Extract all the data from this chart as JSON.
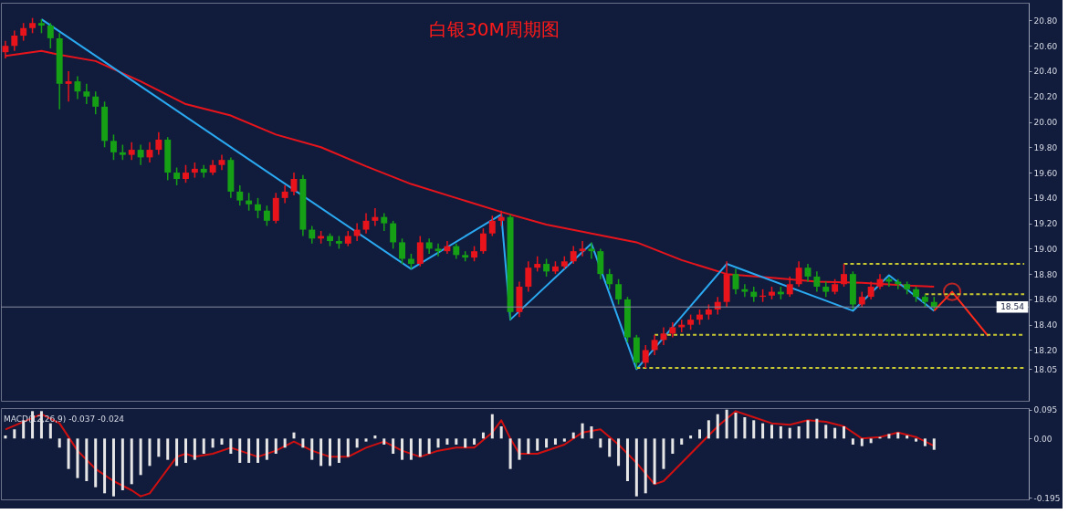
{
  "chart_data": [
    {
      "type": "candlestick",
      "title": "白银30M周期图",
      "categories": [
        null,
        null,
        null,
        null,
        null,
        null,
        null,
        null,
        null,
        null,
        null,
        null,
        null,
        null,
        null,
        null,
        null,
        null,
        null,
        null,
        null,
        null,
        null,
        null,
        null,
        null,
        null,
        null,
        null,
        null,
        null,
        null,
        null,
        null,
        null,
        null,
        null,
        null,
        null,
        null,
        null,
        null,
        null,
        null,
        null,
        null,
        null,
        null,
        null,
        null,
        null,
        null,
        null,
        null,
        null,
        null,
        null,
        null,
        null,
        null,
        null,
        null,
        null,
        null,
        null,
        null,
        null,
        null,
        null,
        null,
        null,
        null,
        null,
        null,
        null,
        null,
        null,
        null,
        null,
        null,
        null,
        null,
        null,
        null,
        null,
        null,
        null,
        null,
        null,
        null,
        null,
        null,
        null,
        null,
        null,
        null,
        null,
        null,
        null,
        null,
        null,
        null,
        null,
        null,
        null,
        null,
        null,
        null,
        null,
        null,
        null,
        null,
        null,
        null
      ],
      "ohlc": [
        [
          20.55,
          20.64,
          20.5,
          20.6
        ],
        [
          20.6,
          20.72,
          20.56,
          20.68
        ],
        [
          20.68,
          20.78,
          20.64,
          20.74
        ],
        [
          20.74,
          20.82,
          20.7,
          20.78
        ],
        [
          20.78,
          20.81,
          20.7,
          20.76
        ],
        [
          20.76,
          20.78,
          20.58,
          20.66
        ],
        [
          20.66,
          20.7,
          20.1,
          20.3
        ],
        [
          20.3,
          20.4,
          20.16,
          20.32
        ],
        [
          20.32,
          20.36,
          20.18,
          20.24
        ],
        [
          20.24,
          20.3,
          20.14,
          20.2
        ],
        [
          20.2,
          20.24,
          20.06,
          20.12
        ],
        [
          20.12,
          20.16,
          19.8,
          19.85
        ],
        [
          19.85,
          19.9,
          19.7,
          19.76
        ],
        [
          19.76,
          19.82,
          19.7,
          19.74
        ],
        [
          19.74,
          19.84,
          19.7,
          19.78
        ],
        [
          19.78,
          19.82,
          19.66,
          19.72
        ],
        [
          19.72,
          19.84,
          19.68,
          19.78
        ],
        [
          19.78,
          19.92,
          19.74,
          19.86
        ],
        [
          19.86,
          19.88,
          19.54,
          19.6
        ],
        [
          19.6,
          19.64,
          19.5,
          19.55
        ],
        [
          19.55,
          19.66,
          19.52,
          19.6
        ],
        [
          19.6,
          19.68,
          19.56,
          19.63
        ],
        [
          19.63,
          19.66,
          19.56,
          19.6
        ],
        [
          19.6,
          19.7,
          19.58,
          19.66
        ],
        [
          19.66,
          19.74,
          19.62,
          19.7
        ],
        [
          19.7,
          19.72,
          19.4,
          19.45
        ],
        [
          19.45,
          19.5,
          19.34,
          19.38
        ],
        [
          19.38,
          19.44,
          19.3,
          19.35
        ],
        [
          19.35,
          19.4,
          19.24,
          19.3
        ],
        [
          19.3,
          19.34,
          19.18,
          19.22
        ],
        [
          19.22,
          19.44,
          19.2,
          19.4
        ],
        [
          19.4,
          19.5,
          19.36,
          19.45
        ],
        [
          19.45,
          19.6,
          19.42,
          19.55
        ],
        [
          19.55,
          19.58,
          19.1,
          19.15
        ],
        [
          19.15,
          19.18,
          19.04,
          19.08
        ],
        [
          19.08,
          19.14,
          19.04,
          19.1
        ],
        [
          19.1,
          19.12,
          19.02,
          19.06
        ],
        [
          19.06,
          19.1,
          19.0,
          19.04
        ],
        [
          19.04,
          19.14,
          19.02,
          19.1
        ],
        [
          19.1,
          19.2,
          19.06,
          19.15
        ],
        [
          19.15,
          19.28,
          19.12,
          19.22
        ],
        [
          19.22,
          19.32,
          19.18,
          19.25
        ],
        [
          19.25,
          19.28,
          19.14,
          19.2
        ],
        [
          19.2,
          19.22,
          19.0,
          19.05
        ],
        [
          19.05,
          19.08,
          18.88,
          18.92
        ],
        [
          18.92,
          18.96,
          18.84,
          18.88
        ],
        [
          18.88,
          19.1,
          18.86,
          19.05
        ],
        [
          19.05,
          19.08,
          18.96,
          19.0
        ],
        [
          19.0,
          19.04,
          18.94,
          18.98
        ],
        [
          18.98,
          19.06,
          18.96,
          19.02
        ],
        [
          19.02,
          19.04,
          18.92,
          18.95
        ],
        [
          18.95,
          18.98,
          18.9,
          18.93
        ],
        [
          18.93,
          19.02,
          18.9,
          18.98
        ],
        [
          18.98,
          19.16,
          18.96,
          19.12
        ],
        [
          19.12,
          19.26,
          19.1,
          19.22
        ],
        [
          19.22,
          19.3,
          19.18,
          19.25
        ],
        [
          19.25,
          19.27,
          18.44,
          18.5
        ],
        [
          18.5,
          18.74,
          18.46,
          18.7
        ],
        [
          18.7,
          18.9,
          18.66,
          18.85
        ],
        [
          18.85,
          18.94,
          18.82,
          18.88
        ],
        [
          18.88,
          18.92,
          18.78,
          18.82
        ],
        [
          18.82,
          18.9,
          18.8,
          18.86
        ],
        [
          18.86,
          18.94,
          18.84,
          18.9
        ],
        [
          18.9,
          19.02,
          18.88,
          18.98
        ],
        [
          18.98,
          19.06,
          18.94,
          19.0
        ],
        [
          19.0,
          19.05,
          18.92,
          18.98
        ],
        [
          18.98,
          19.0,
          18.76,
          18.8
        ],
        [
          18.8,
          18.84,
          18.68,
          18.72
        ],
        [
          18.72,
          18.76,
          18.56,
          18.6
        ],
        [
          18.6,
          18.62,
          18.26,
          18.3
        ],
        [
          18.3,
          18.32,
          18.05,
          18.1
        ],
        [
          18.1,
          18.24,
          18.06,
          18.2
        ],
        [
          18.2,
          18.32,
          18.16,
          18.28
        ],
        [
          18.28,
          18.38,
          18.24,
          18.33
        ],
        [
          18.33,
          18.42,
          18.3,
          18.38
        ],
        [
          18.38,
          18.44,
          18.34,
          18.4
        ],
        [
          18.4,
          18.48,
          18.36,
          18.44
        ],
        [
          18.44,
          18.52,
          18.4,
          18.48
        ],
        [
          18.48,
          18.56,
          18.44,
          18.52
        ],
        [
          18.52,
          18.62,
          18.48,
          18.58
        ],
        [
          18.58,
          18.9,
          18.54,
          18.8
        ],
        [
          18.8,
          18.84,
          18.64,
          18.68
        ],
        [
          18.68,
          18.72,
          18.62,
          18.66
        ],
        [
          18.66,
          18.7,
          18.58,
          18.62
        ],
        [
          18.62,
          18.68,
          18.58,
          18.63
        ],
        [
          18.63,
          18.7,
          18.6,
          18.66
        ],
        [
          18.66,
          18.7,
          18.6,
          18.64
        ],
        [
          18.64,
          18.78,
          18.62,
          18.72
        ],
        [
          18.72,
          18.9,
          18.7,
          18.85
        ],
        [
          18.85,
          18.88,
          18.74,
          18.78
        ],
        [
          18.78,
          18.82,
          18.66,
          18.7
        ],
        [
          18.7,
          18.74,
          18.62,
          18.66
        ],
        [
          18.66,
          18.76,
          18.64,
          18.72
        ],
        [
          18.72,
          18.88,
          18.7,
          18.8
        ],
        [
          18.8,
          18.82,
          18.52,
          18.56
        ],
        [
          18.56,
          18.66,
          18.54,
          18.62
        ],
        [
          18.62,
          18.74,
          18.6,
          18.7
        ],
        [
          18.7,
          18.8,
          18.68,
          18.76
        ],
        [
          18.76,
          18.78,
          18.7,
          18.74
        ],
        [
          18.74,
          18.76,
          18.68,
          18.72
        ],
        [
          18.72,
          18.74,
          18.64,
          18.68
        ],
        [
          18.68,
          18.7,
          18.58,
          18.62
        ],
        [
          18.62,
          18.64,
          18.54,
          18.58
        ],
        [
          18.58,
          18.62,
          18.52,
          18.54
        ],
        null,
        null,
        null,
        null,
        null,
        null,
        null,
        null,
        null,
        null
      ],
      "colors": [
        "#e8141c",
        "#e8141c",
        "#e8141c",
        "#e8141c",
        "#16a016",
        "#16a016",
        "#16a016",
        "#e8141c",
        "#16a016",
        "#16a016",
        "#16a016",
        "#16a016",
        "#16a016",
        "#16a016",
        "#e8141c",
        "#16a016",
        "#e8141c",
        "#e8141c",
        "#16a016",
        "#16a016",
        "#e8141c",
        "#e8141c",
        "#16a016",
        "#e8141c",
        "#e8141c",
        "#16a016",
        "#16a016",
        "#16a016",
        "#16a016",
        "#16a016",
        "#e8141c",
        "#e8141c",
        "#e8141c",
        "#16a016",
        "#16a016",
        "#e8141c",
        "#16a016",
        "#16a016",
        "#e8141c",
        "#e8141c",
        "#e8141c",
        "#e8141c",
        "#16a016",
        "#16a016",
        "#16a016",
        "#16a016",
        "#e8141c",
        "#16a016",
        "#16a016",
        "#e8141c",
        "#16a016",
        "#16a016",
        "#e8141c",
        "#e8141c",
        "#e8141c",
        "#e8141c",
        "#16a016",
        "#e8141c",
        "#e8141c",
        "#e8141c",
        "#16a016",
        "#e8141c",
        "#e8141c",
        "#e8141c",
        "#e8141c",
        "#16a016",
        "#16a016",
        "#16a016",
        "#16a016",
        "#16a016",
        "#16a016",
        "#e8141c",
        "#e8141c",
        "#e8141c",
        "#e8141c",
        "#e8141c",
        "#e8141c",
        "#e8141c",
        "#e8141c",
        "#e8141c",
        "#e8141c",
        "#16a016",
        "#16a016",
        "#16a016",
        "#e8141c",
        "#e8141c",
        "#16a016",
        "#e8141c",
        "#e8141c",
        "#16a016",
        "#16a016",
        "#16a016",
        "#e8141c",
        "#e8141c",
        "#16a016",
        "#e8141c",
        "#e8141c",
        "#e8141c",
        "#16a016",
        "#16a016",
        "#16a016",
        "#16a016",
        "#16a016",
        "#16a016",
        null,
        null,
        null,
        null,
        null,
        null,
        null,
        null,
        null,
        null
      ],
      "series": [
        {
          "type": "line",
          "color": "#e8141c",
          "line_style": "solid",
          "values": [
            20.52,
            null,
            null,
            null,
            20.56,
            null,
            20.53,
            null,
            null,
            null,
            20.48,
            null,
            null,
            null,
            null,
            20.32,
            null,
            null,
            null,
            null,
            20.14,
            null,
            null,
            null,
            null,
            20.05,
            null,
            null,
            null,
            null,
            19.9,
            null,
            null,
            null,
            null,
            19.8,
            null,
            null,
            null,
            null,
            19.65,
            null,
            null,
            null,
            null,
            19.51,
            null,
            null,
            null,
            null,
            19.4,
            null,
            null,
            null,
            null,
            19.29,
            null,
            null,
            null,
            null,
            19.19,
            null,
            null,
            null,
            null,
            19.12,
            null,
            null,
            null,
            null,
            19.05,
            null,
            null,
            null,
            null,
            18.91,
            null,
            null,
            null,
            null,
            18.8,
            null,
            null,
            null,
            null,
            18.77,
            null,
            null,
            null,
            null,
            18.74,
            null,
            null,
            null,
            null,
            18.73,
            null,
            null,
            null,
            null,
            18.71,
            null,
            null,
            18.7,
            null,
            null,
            null,
            null,
            null,
            null,
            null,
            null,
            null,
            null
          ]
        },
        {
          "type": "line",
          "color": "#2aa8f0",
          "line_style": "solid",
          "values": [
            null,
            null,
            null,
            null,
            20.81,
            null,
            null,
            null,
            null,
            null,
            null,
            null,
            null,
            null,
            null,
            null,
            null,
            null,
            null,
            null,
            null,
            null,
            null,
            null,
            null,
            null,
            null,
            null,
            null,
            null,
            null,
            null,
            null,
            null,
            null,
            null,
            null,
            null,
            null,
            null,
            null,
            null,
            null,
            null,
            null,
            18.84,
            null,
            null,
            null,
            null,
            null,
            null,
            null,
            null,
            null,
            19.27,
            18.44,
            null,
            null,
            null,
            null,
            null,
            null,
            null,
            null,
            19.04,
            null,
            null,
            null,
            null,
            18.05,
            null,
            null,
            null,
            null,
            null,
            null,
            null,
            null,
            null,
            18.88,
            null,
            null,
            null,
            null,
            null,
            null,
            null,
            null,
            null,
            null,
            null,
            null,
            null,
            18.51,
            null,
            null,
            null,
            18.79,
            null,
            null,
            null,
            null,
            18.51,
            null,
            null,
            null,
            null,
            null,
            null,
            null,
            null,
            null,
            null
          ]
        },
        {
          "type": "line",
          "color": "#ff2a1a",
          "line_style": "solid",
          "values": [
            null,
            null,
            null,
            null,
            null,
            null,
            null,
            null,
            null,
            null,
            null,
            null,
            null,
            null,
            null,
            null,
            null,
            null,
            null,
            null,
            null,
            null,
            null,
            null,
            null,
            null,
            null,
            null,
            null,
            null,
            null,
            null,
            null,
            null,
            null,
            null,
            null,
            null,
            null,
            null,
            null,
            null,
            null,
            null,
            null,
            null,
            null,
            null,
            null,
            null,
            null,
            null,
            null,
            null,
            null,
            null,
            null,
            null,
            null,
            null,
            null,
            null,
            null,
            null,
            null,
            null,
            null,
            null,
            null,
            null,
            null,
            null,
            null,
            null,
            null,
            null,
            null,
            null,
            null,
            null,
            null,
            null,
            null,
            null,
            null,
            null,
            null,
            null,
            null,
            null,
            null,
            null,
            null,
            null,
            null,
            null,
            null,
            null,
            null,
            null,
            null,
            null,
            null,
            18.51,
            null,
            18.66,
            null,
            null,
            null,
            18.31,
            null,
            null,
            null,
            null
          ]
        },
        {
          "type": "scatter",
          "color": "#ff2a1a",
          "marker": "circle",
          "values": [
            null,
            null,
            null,
            null,
            null,
            null,
            null,
            null,
            null,
            null,
            null,
            null,
            null,
            null,
            null,
            null,
            null,
            null,
            null,
            null,
            null,
            null,
            null,
            null,
            null,
            null,
            null,
            null,
            null,
            null,
            null,
            null,
            null,
            null,
            null,
            null,
            null,
            null,
            null,
            null,
            null,
            null,
            null,
            null,
            null,
            null,
            null,
            null,
            null,
            null,
            null,
            null,
            null,
            null,
            null,
            null,
            null,
            null,
            null,
            null,
            null,
            null,
            null,
            null,
            null,
            null,
            null,
            null,
            null,
            null,
            null,
            null,
            null,
            null,
            null,
            null,
            null,
            null,
            null,
            null,
            null,
            null,
            null,
            null,
            null,
            null,
            null,
            null,
            null,
            null,
            null,
            null,
            null,
            null,
            null,
            null,
            null,
            null,
            null,
            null,
            null,
            null,
            null,
            null,
            null,
            18.66,
            null,
            null,
            null,
            null,
            null,
            null,
            null,
            null
          ]
        },
        {
          "type": "line",
          "color": "#c8c832",
          "line_style": "dashed",
          "values": [
            null,
            null,
            null,
            null,
            null,
            null,
            null,
            null,
            null,
            null,
            null,
            null,
            null,
            null,
            null,
            null,
            null,
            null,
            null,
            null,
            null,
            null,
            null,
            null,
            null,
            null,
            null,
            null,
            null,
            null,
            null,
            null,
            null,
            null,
            null,
            null,
            null,
            null,
            null,
            null,
            null,
            null,
            null,
            null,
            null,
            null,
            null,
            null,
            null,
            null,
            null,
            null,
            null,
            null,
            null,
            null,
            null,
            null,
            null,
            null,
            null,
            null,
            null,
            null,
            null,
            null,
            null,
            null,
            null,
            null,
            null,
            null,
            null,
            null,
            null,
            null,
            null,
            null,
            null,
            null,
            null,
            null,
            null,
            null,
            null,
            null,
            null,
            null,
            null,
            null,
            null,
            null,
            null,
            18.88,
            null,
            null,
            null,
            null,
            null,
            null,
            null,
            null,
            null,
            null,
            null,
            null,
            null,
            null,
            null,
            null,
            null,
            null,
            null,
            18.88
          ]
        },
        {
          "type": "line",
          "color": "#c8c832",
          "line_style": "dashed",
          "values": [
            null,
            null,
            null,
            null,
            null,
            null,
            null,
            null,
            null,
            null,
            null,
            null,
            null,
            null,
            null,
            null,
            null,
            null,
            null,
            null,
            null,
            null,
            null,
            null,
            null,
            null,
            null,
            null,
            null,
            null,
            null,
            null,
            null,
            null,
            null,
            null,
            null,
            null,
            null,
            null,
            null,
            null,
            null,
            null,
            null,
            null,
            null,
            null,
            null,
            null,
            null,
            null,
            null,
            null,
            null,
            null,
            null,
            null,
            null,
            null,
            null,
            null,
            null,
            null,
            null,
            null,
            null,
            null,
            null,
            null,
            null,
            null,
            null,
            null,
            null,
            null,
            null,
            null,
            null,
            null,
            null,
            null,
            null,
            null,
            null,
            null,
            null,
            null,
            null,
            null,
            null,
            null,
            null,
            null,
            null,
            null,
            null,
            null,
            null,
            null,
            null,
            null,
            18.64,
            null,
            null,
            null,
            null,
            null,
            null,
            null,
            null,
            null,
            null,
            18.64
          ]
        },
        {
          "type": "line",
          "color": "#c8c832",
          "line_style": "dashed",
          "values": [
            null,
            null,
            null,
            null,
            null,
            null,
            null,
            null,
            null,
            null,
            null,
            null,
            null,
            null,
            null,
            null,
            null,
            null,
            null,
            null,
            null,
            null,
            null,
            null,
            null,
            null,
            null,
            null,
            null,
            null,
            null,
            null,
            null,
            null,
            null,
            null,
            null,
            null,
            null,
            null,
            null,
            null,
            null,
            null,
            null,
            null,
            null,
            null,
            null,
            null,
            null,
            null,
            null,
            null,
            null,
            null,
            null,
            null,
            null,
            null,
            null,
            null,
            null,
            null,
            null,
            null,
            null,
            null,
            null,
            null,
            null,
            null,
            18.32,
            null,
            null,
            null,
            null,
            null,
            null,
            null,
            null,
            null,
            null,
            null,
            null,
            null,
            null,
            null,
            null,
            null,
            null,
            null,
            null,
            null,
            null,
            null,
            null,
            null,
            null,
            null,
            null,
            null,
            null,
            null,
            null,
            null,
            null,
            null,
            null,
            null,
            null,
            null,
            null,
            18.32
          ]
        },
        {
          "type": "line",
          "color": "#c8c832",
          "line_style": "dashed",
          "values": [
            null,
            null,
            null,
            null,
            null,
            null,
            null,
            null,
            null,
            null,
            null,
            null,
            null,
            null,
            null,
            null,
            null,
            null,
            null,
            null,
            null,
            null,
            null,
            null,
            null,
            null,
            null,
            null,
            null,
            null,
            null,
            null,
            null,
            null,
            null,
            null,
            null,
            null,
            null,
            null,
            null,
            null,
            null,
            null,
            null,
            null,
            null,
            null,
            null,
            null,
            null,
            null,
            null,
            null,
            null,
            null,
            null,
            null,
            null,
            null,
            null,
            null,
            null,
            null,
            null,
            null,
            null,
            null,
            null,
            null,
            18.06,
            null,
            null,
            null,
            null,
            null,
            null,
            null,
            null,
            null,
            null,
            null,
            null,
            null,
            null,
            null,
            null,
            null,
            null,
            null,
            null,
            null,
            null,
            null,
            null,
            null,
            null,
            null,
            null,
            null,
            null,
            null,
            null,
            null,
            null,
            null,
            null,
            null,
            null,
            null,
            null,
            null,
            null,
            18.06
          ]
        }
      ],
      "ref_lines": [
        {
          "axis": "y",
          "value": 18.54,
          "label": "18.54",
          "color": "#8a8fa0"
        }
      ],
      "ylim": [
        17.8,
        20.94
      ],
      "yticks": [
        {
          "value": 20.8,
          "label": "20.80"
        },
        {
          "value": 20.6,
          "label": "20.60"
        },
        {
          "value": 20.4,
          "label": "20.40"
        },
        {
          "value": 20.2,
          "label": "20.20"
        },
        {
          "value": 20.0,
          "label": "20.00"
        },
        {
          "value": 19.8,
          "label": "19.80"
        },
        {
          "value": 19.6,
          "label": "19.60"
        },
        {
          "value": 19.4,
          "label": "19.40"
        },
        {
          "value": 19.2,
          "label": "19.20"
        },
        {
          "value": 19.0,
          "label": "19.00"
        },
        {
          "value": 18.8,
          "label": "18.80"
        },
        {
          "value": 18.6,
          "label": "18.60"
        },
        {
          "value": 18.4,
          "label": "18.40"
        },
        {
          "value": 18.2,
          "label": "18.20"
        },
        18.05
      ],
      "tick_labels": "y",
      "grid": false
    },
    {
      "type": "bar",
      "categories": [
        null,
        null,
        null,
        null,
        null,
        null,
        null,
        null,
        null,
        null,
        null,
        null,
        null,
        null,
        null,
        null,
        null,
        null,
        null,
        null,
        null,
        null,
        null,
        null,
        null,
        null,
        null,
        null,
        null,
        null,
        null,
        null,
        null,
        null,
        null,
        null,
        null,
        null,
        null,
        null,
        null,
        null,
        null,
        null,
        null,
        null,
        null,
        null,
        null,
        null,
        null,
        null,
        null,
        null,
        null,
        null,
        null,
        null,
        null,
        null,
        null,
        null,
        null,
        null,
        null,
        null,
        null,
        null,
        null,
        null,
        null,
        null,
        null,
        null,
        null,
        null,
        null,
        null,
        null,
        null,
        null,
        null,
        null,
        null,
        null,
        null,
        null,
        null,
        null,
        null,
        null,
        null,
        null,
        null,
        null,
        null,
        null,
        null,
        null,
        null,
        null,
        null,
        null,
        null,
        null,
        null,
        null,
        null,
        null,
        null,
        null,
        null,
        null,
        null
      ],
      "series": [
        {
          "type": "bar",
          "color": "#e6e6e6",
          "values": [
            0.01,
            0.03,
            0.06,
            0.09,
            0.09,
            0.05,
            -0.03,
            -0.1,
            -0.13,
            -0.14,
            -0.16,
            -0.18,
            -0.19,
            -0.17,
            -0.15,
            -0.12,
            -0.09,
            -0.06,
            -0.07,
            -0.09,
            -0.08,
            -0.07,
            -0.05,
            -0.03,
            -0.02,
            -0.05,
            -0.08,
            -0.08,
            -0.08,
            -0.07,
            -0.05,
            -0.03,
            0.02,
            -0.03,
            -0.07,
            -0.09,
            -0.09,
            -0.08,
            -0.06,
            -0.03,
            -0.01,
            0.01,
            -0.02,
            -0.05,
            -0.07,
            -0.07,
            -0.06,
            -0.05,
            -0.03,
            -0.02,
            -0.02,
            -0.03,
            -0.02,
            0.02,
            0.08,
            0.04,
            -0.1,
            -0.07,
            -0.05,
            -0.04,
            -0.03,
            -0.02,
            -0.01,
            0.02,
            0.05,
            0.04,
            -0.03,
            -0.06,
            -0.09,
            -0.14,
            -0.19,
            -0.18,
            -0.15,
            -0.1,
            -0.05,
            -0.02,
            0.01,
            0.03,
            0.06,
            0.08,
            0.095,
            0.085,
            0.07,
            0.06,
            0.05,
            0.045,
            0.04,
            0.035,
            0.04,
            0.06,
            0.065,
            0.045,
            0.035,
            0.04,
            -0.02,
            -0.025,
            -0.015,
            0.005,
            0.015,
            0.02,
            0.01,
            -0.01,
            -0.025,
            -0.037,
            null,
            null,
            null,
            null,
            null,
            null,
            null,
            null,
            null,
            null
          ]
        },
        {
          "type": "line",
          "color": "#d01010",
          "line_style": "solid",
          "values": [
            0.03,
            null,
            null,
            null,
            0.08,
            null,
            0.05,
            null,
            -0.04,
            null,
            -0.1,
            null,
            -0.14,
            null,
            -0.17,
            -0.19,
            -0.18,
            -0.14,
            -0.1,
            -0.06,
            -0.05,
            -0.06,
            null,
            -0.05,
            null,
            -0.03,
            -0.04,
            null,
            -0.06,
            null,
            -0.04,
            null,
            -0.01,
            null,
            -0.04,
            null,
            -0.06,
            null,
            -0.06,
            null,
            -0.03,
            null,
            -0.01,
            null,
            -0.04,
            null,
            -0.06,
            null,
            -0.04,
            null,
            -0.03,
            null,
            -0.03,
            null,
            0.02,
            0.06,
            0.0,
            -0.05,
            null,
            -0.05,
            null,
            null,
            -0.02,
            null,
            0.02,
            null,
            0.03,
            null,
            -0.02,
            null,
            -0.08,
            null,
            -0.15,
            -0.14,
            null,
            -0.08,
            null,
            -0.02,
            null,
            0.04,
            null,
            0.09,
            null,
            0.07,
            null,
            0.05,
            null,
            0.045,
            null,
            0.06,
            null,
            0.055,
            null,
            0.04,
            null,
            0.0,
            null,
            0.005,
            null,
            0.02,
            null,
            0.005,
            null,
            -0.024,
            null,
            null,
            null,
            null,
            null,
            null,
            null,
            null,
            null,
            null
          ]
        }
      ],
      "annotations": [
        "MACD(12,26,9) -0.037 -0.024"
      ],
      "ylim": [
        -0.2,
        0.1
      ],
      "yticks": [
        0.095,
        {
          "value": 0,
          "label": "0.00"
        },
        -0.195
      ],
      "tick_labels": "y",
      "grid": false
    }
  ]
}
